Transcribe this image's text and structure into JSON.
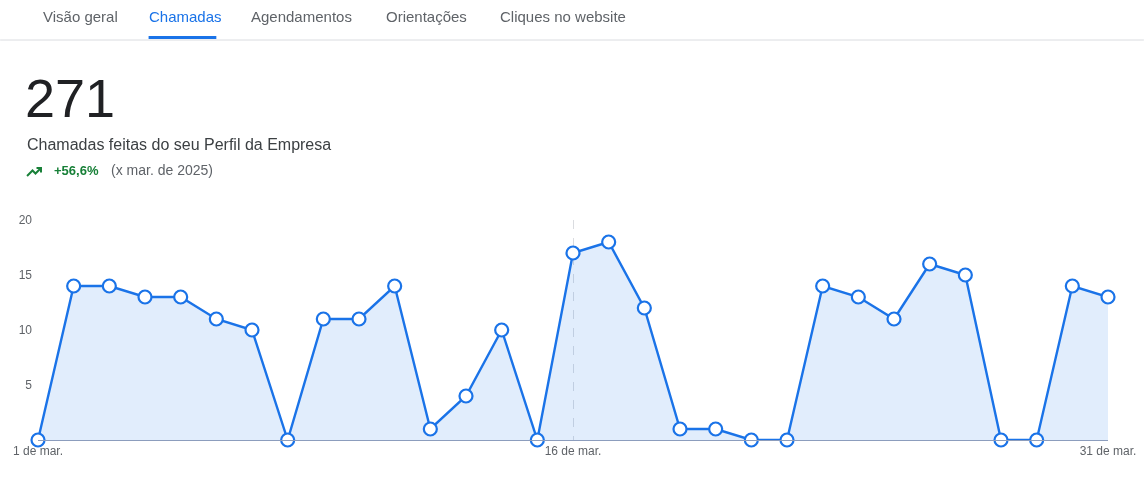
{
  "chart_data": {
    "type": "area",
    "title": "271",
    "subtitle": "Chamadas feitas do seu Perfil da Empresa",
    "annotations": [
      "Visão geral",
      "Chamadas",
      "Agendamentos",
      "Orientações",
      "Cliques no website",
      "+56,6%",
      "(x mar. de 2025)"
    ],
    "x": [
      "2025-03-01",
      "2025-03-02",
      "2025-03-03",
      "2025-03-04",
      "2025-03-05",
      "2025-03-06",
      "2025-03-07",
      "2025-03-08",
      "2025-03-09",
      "2025-03-10",
      "2025-03-11",
      "2025-03-12",
      "2025-03-13",
      "2025-03-14",
      "2025-03-15",
      "2025-03-16",
      "2025-03-17",
      "2025-03-18",
      "2025-03-19",
      "2025-03-20",
      "2025-03-21",
      "2025-03-22",
      "2025-03-23",
      "2025-03-24",
      "2025-03-25",
      "2025-03-26",
      "2025-03-27",
      "2025-03-28",
      "2025-03-29",
      "2025-03-30",
      "2025-03-31"
    ],
    "series": [
      {
        "color": "#1a73e8",
        "values": [
          0,
          14,
          14,
          13,
          13,
          11,
          10,
          0,
          11,
          11,
          14,
          1,
          4,
          10,
          0,
          17,
          18,
          12,
          1,
          1,
          0,
          0,
          14,
          13,
          11,
          16,
          15,
          0,
          0,
          14,
          13
        ]
      }
    ],
    "xlim": [
      "2025-03-01",
      "2025-03-31"
    ],
    "xticks": [
      {
        "value": "2025-03-01",
        "label": "1 de mar."
      },
      {
        "value": "2025-03-16",
        "label": "16 de mar."
      },
      {
        "value": "2025-03-31",
        "label": "31 de mar."
      }
    ],
    "ylim": [
      0,
      20
    ],
    "yticks": [
      5,
      10,
      15,
      20
    ],
    "grid": "x",
    "marker": "circle",
    "line_style": "solid"
  }
}
